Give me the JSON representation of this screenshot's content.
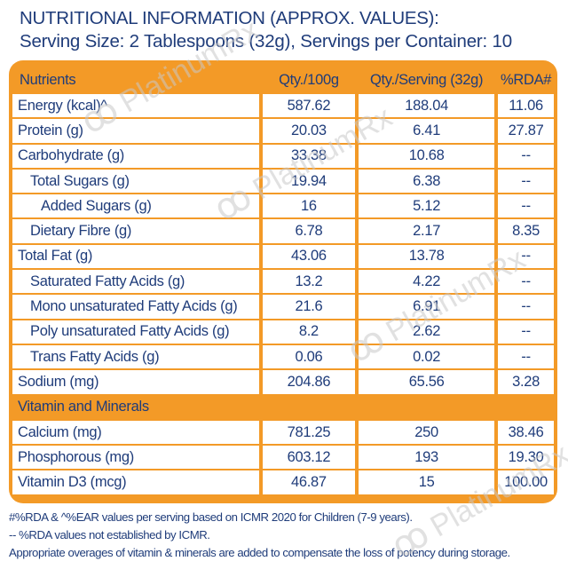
{
  "heading": {
    "line1": "NUTRITIONAL INFORMATION (APPROX. VALUES):",
    "line2": "Serving Size: 2 Tablespoons (32g), Servings per Container: 10"
  },
  "table": {
    "headers": [
      "Nutrients",
      "Qty./100g",
      "Qty./Serving (32g)",
      "%RDA#"
    ],
    "rows": [
      {
        "label": "Energy (kcal)^",
        "per100": "587.62",
        "perServing": "188.04",
        "rda": "11.06",
        "indent": 0
      },
      {
        "label": "Protein (g)",
        "per100": "20.03",
        "perServing": "6.41",
        "rda": "27.87",
        "indent": 0
      },
      {
        "label": "Carbohydrate (g)",
        "per100": "33.38",
        "perServing": "10.68",
        "rda": "--",
        "indent": 0
      },
      {
        "label": "Total Sugars (g)",
        "per100": "19.94",
        "perServing": "6.38",
        "rda": "--",
        "indent": 1
      },
      {
        "label": "Added Sugars (g)",
        "per100": "16",
        "perServing": "5.12",
        "rda": "--",
        "indent": 2
      },
      {
        "label": "Dietary Fibre (g)",
        "per100": "6.78",
        "perServing": "2.17",
        "rda": "8.35",
        "indent": 1
      },
      {
        "label": "Total Fat (g)",
        "per100": "43.06",
        "perServing": "13.78",
        "rda": "--",
        "indent": 0
      },
      {
        "label": "Saturated Fatty Acids (g)",
        "per100": "13.2",
        "perServing": "4.22",
        "rda": "--",
        "indent": 1
      },
      {
        "label": "Mono unsaturated Fatty Acids (g)",
        "per100": "21.6",
        "perServing": "6.91",
        "rda": "--",
        "indent": 1
      },
      {
        "label": "Poly unsaturated Fatty Acids (g)",
        "per100": "8.2",
        "perServing": "2.62",
        "rda": "--",
        "indent": 1
      },
      {
        "label": "Trans Fatty Acids (g)",
        "per100": "0.06",
        "perServing": "0.02",
        "rda": "--",
        "indent": 1
      },
      {
        "label": "Sodium (mg)",
        "per100": "204.86",
        "perServing": "65.56",
        "rda": "3.28",
        "indent": 0
      }
    ],
    "section": "Vitamin and Minerals",
    "rows2": [
      {
        "label": "Calcium (mg)",
        "per100": "781.25",
        "perServing": "250",
        "rda": "38.46",
        "indent": 0
      },
      {
        "label": "Phosphorous (mg)",
        "per100": "603.12",
        "perServing": "193",
        "rda": "19.30",
        "indent": 0
      },
      {
        "label": "Vitamin D3 (mcg)",
        "per100": "46.87",
        "perServing": "15",
        "rda": "100.00",
        "indent": 0
      }
    ]
  },
  "footer": {
    "line1": "#%RDA & ^%EAR values per serving based on ICMR 2020 for Children (7-9 years).",
    "line2": "-- %RDA values not established by ICMR.",
    "line3": "Appropriate overages of vitamin & minerals are added to compensate the loss of potency during storage."
  },
  "watermark": {
    "text": "PlatinumRx",
    "glyph": "ꝏ"
  },
  "colors": {
    "accent": "#f39a27",
    "text": "#1f3c7a",
    "watermark": "#c9c9c9"
  }
}
